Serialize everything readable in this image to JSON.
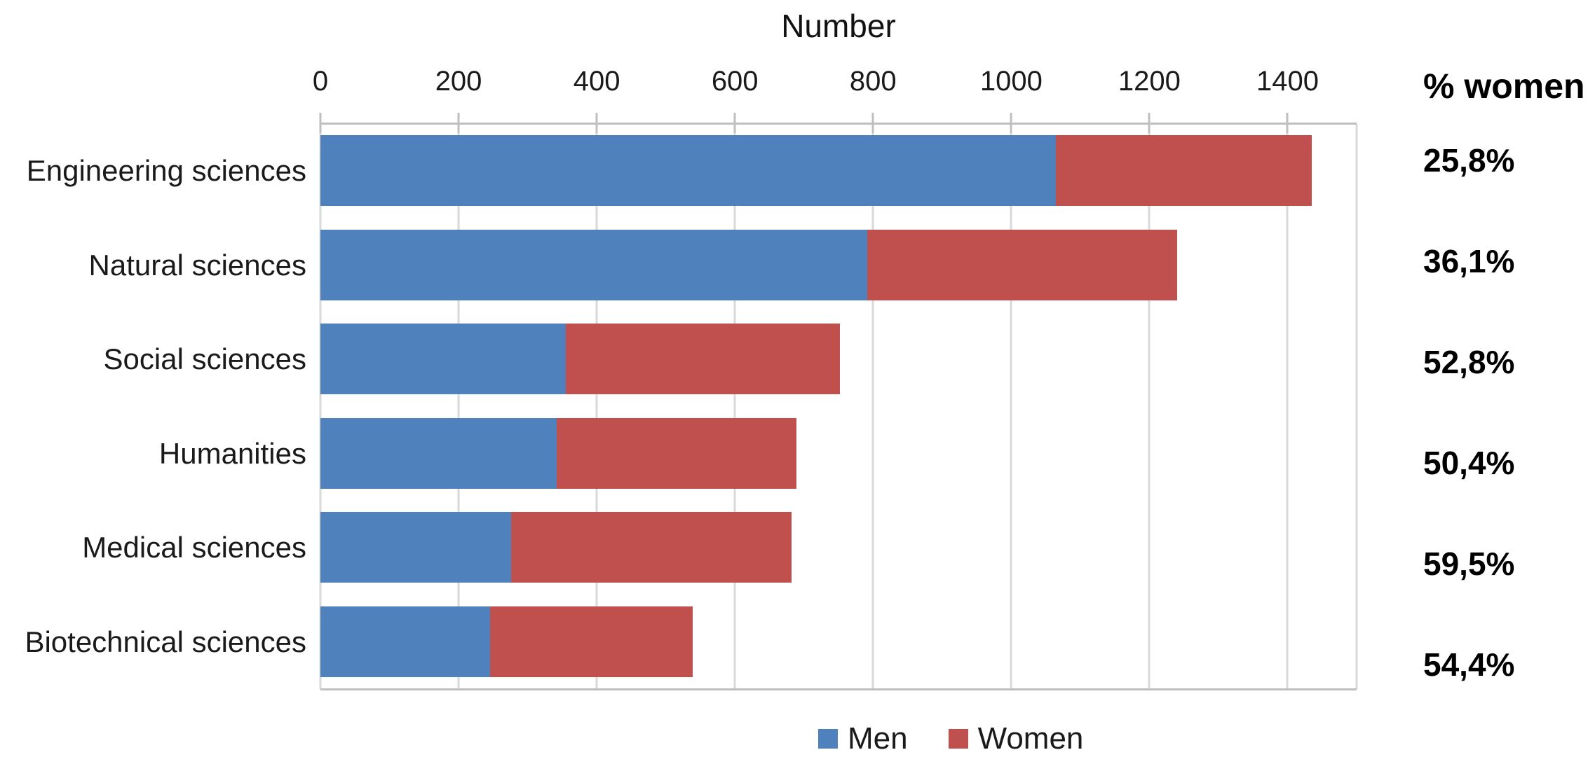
{
  "title": "Number",
  "pct_header": "% women",
  "colors": {
    "men": "#4F81BD",
    "women": "#C0504D",
    "gridline": "#D9D9D9",
    "axis_line": "#BFBFBF",
    "text": "#1A1A1A"
  },
  "legend": {
    "items": [
      {
        "label": "Men",
        "color": "#4F81BD"
      },
      {
        "label": "Women",
        "color": "#C0504D"
      }
    ]
  },
  "chart_data": {
    "type": "bar",
    "orientation": "horizontal",
    "stacked": true,
    "title": "Number",
    "xlabel": "Number",
    "ylabel": "",
    "xlim": [
      0,
      1500
    ],
    "x_ticks": [
      0,
      200,
      400,
      600,
      800,
      1000,
      1200,
      1400
    ],
    "x_tick_labels": [
      "0",
      "200",
      "400",
      "600",
      "800",
      "1000",
      "1200",
      "1400"
    ],
    "grid": true,
    "legend_position": "bottom",
    "categories": [
      "Engineering sciences",
      "Natural sciences",
      "Social sciences",
      "Humanities",
      "Medical sciences",
      "Biotechnical sciences"
    ],
    "series": [
      {
        "name": "Men",
        "color": "#4F81BD",
        "values": [
          1065,
          792,
          355,
          342,
          276,
          246
        ]
      },
      {
        "name": "Women",
        "color": "#C0504D",
        "values": [
          370,
          448,
          397,
          347,
          406,
          293
        ]
      }
    ],
    "totals": [
      1435,
      1240,
      752,
      689,
      682,
      539
    ],
    "pct_women_labels": [
      "25,8%",
      "36,1%",
      "52,8%",
      "50,4%",
      "59,5%",
      "54,4%"
    ]
  }
}
